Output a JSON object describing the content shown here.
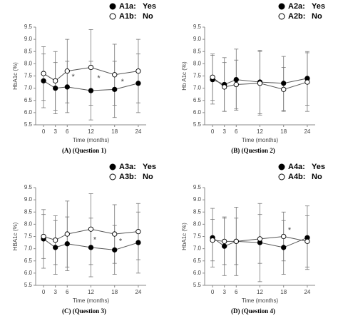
{
  "chart_data": [
    {
      "type": "line",
      "caption": "(A) (Question 1)",
      "xlabel": "Time (months)",
      "ylabel": "HbA1c (%)",
      "x": [
        0,
        3,
        6,
        12,
        18,
        24
      ],
      "xlim": [
        -2,
        26
      ],
      "xticks": [
        0,
        3,
        6,
        12,
        18,
        24
      ],
      "ylim": [
        5.5,
        9.5
      ],
      "yticks": [
        5.5,
        {
          "value": 6,
          "label": "6.0"
        },
        6.5,
        {
          "value": 7,
          "label": "7.0"
        },
        7.5,
        {
          "value": 8,
          "label": "8.0"
        },
        8.5,
        {
          "value": 9,
          "label": "9.0"
        },
        9.5
      ],
      "series": [
        {
          "name": "A1a:",
          "legend_label": "Yes",
          "color": "#000000",
          "values": [
            7.3,
            7.0,
            7.05,
            6.9,
            6.95,
            7.2
          ],
          "errors": [
            1.1,
            1.05,
            1.05,
            1.2,
            1.15,
            1.2
          ]
        },
        {
          "name": "A1b:",
          "legend_label": "No",
          "color": "#ffffff",
          "values": [
            7.6,
            7.3,
            7.7,
            7.85,
            7.55,
            7.7
          ],
          "errors": [
            1.1,
            1.2,
            1.3,
            1.55,
            1.25,
            1.3
          ]
        }
      ],
      "annotations": [
        {
          "text": "*",
          "x": 7.5,
          "y": 7.45
        },
        {
          "text": "*",
          "x": 14,
          "y": 7.4
        },
        {
          "text": "*",
          "x": 20,
          "y": 7.25
        }
      ]
    },
    {
      "type": "line",
      "caption": "(B) (Question 2)",
      "xlabel": "Time (months)",
      "ylabel": "Hb A1c (%)",
      "x": [
        0,
        3,
        6,
        12,
        18,
        24
      ],
      "xlim": [
        -2,
        26
      ],
      "xticks": [
        0,
        3,
        6,
        12,
        18,
        24
      ],
      "ylim": [
        5.5,
        9.5
      ],
      "yticks": [
        5.5,
        {
          "value": 6,
          "label": "6.0"
        },
        6.5,
        {
          "value": 7,
          "label": "7.0"
        },
        7.5,
        {
          "value": 8,
          "label": "8.0"
        },
        8.5,
        {
          "value": 9,
          "label": "9.0"
        },
        9.5
      ],
      "series": [
        {
          "name": "A2a:",
          "legend_label": "Yes",
          "color": "#000000",
          "values": [
            7.35,
            7.15,
            7.35,
            7.25,
            7.2,
            7.4
          ],
          "errors": [
            1.0,
            1.1,
            1.25,
            1.3,
            1.1,
            1.1
          ]
        },
        {
          "name": "A2b:",
          "legend_label": "No",
          "color": "#ffffff",
          "values": [
            7.45,
            7.05,
            7.15,
            7.2,
            6.95,
            7.25
          ],
          "errors": [
            0.95,
            1.0,
            1.0,
            1.3,
            0.9,
            1.2
          ]
        }
      ],
      "annotations": []
    },
    {
      "type": "line",
      "caption": "(C) (Question 3)",
      "xlabel": "Time (months)",
      "ylabel": "HBA1c (%)",
      "x": [
        0,
        3,
        6,
        12,
        18,
        24
      ],
      "xlim": [
        -2,
        26
      ],
      "xticks": [
        0,
        3,
        6,
        12,
        18,
        24
      ],
      "ylim": [
        5.5,
        9.5
      ],
      "yticks": [
        5.5,
        {
          "value": 6,
          "label": "6.0"
        },
        6.5,
        {
          "value": 7,
          "label": "7.0"
        },
        7.5,
        {
          "value": 8,
          "label": "8.0"
        },
        8.5,
        {
          "value": 9,
          "label": "9.0"
        },
        9.5
      ],
      "series": [
        {
          "name": "A3a:",
          "legend_label": "Yes",
          "color": "#000000",
          "values": [
            7.4,
            7.05,
            7.2,
            7.05,
            6.95,
            7.25
          ],
          "errors": [
            1.2,
            1.1,
            1.1,
            1.2,
            1.0,
            1.25
          ]
        },
        {
          "name": "A3b:",
          "legend_label": "No",
          "color": "#ffffff",
          "values": [
            7.5,
            7.35,
            7.6,
            7.8,
            7.6,
            7.7
          ],
          "errors": [
            0.9,
            1.0,
            1.35,
            1.45,
            1.2,
            1.15
          ]
        }
      ],
      "annotations": [
        {
          "text": "*",
          "x": 13,
          "y": 7.35
        },
        {
          "text": "*",
          "x": 19.5,
          "y": 7.3
        }
      ]
    },
    {
      "type": "line",
      "caption": "(D) (Question 4)",
      "xlabel": "Time (months)",
      "ylabel": "HbA1c (%)",
      "x": [
        0,
        3,
        6,
        12,
        18,
        24
      ],
      "xlim": [
        -2,
        26
      ],
      "xticks": [
        0,
        3,
        6,
        12,
        18,
        24
      ],
      "ylim": [
        5.5,
        9.5
      ],
      "yticks": [
        5.5,
        {
          "value": 6,
          "label": "6.0"
        },
        6.5,
        {
          "value": 7,
          "label": "7.0"
        },
        7.5,
        {
          "value": 8,
          "label": "8.0"
        },
        8.5,
        {
          "value": 9,
          "label": "9.0"
        },
        9.5
      ],
      "series": [
        {
          "name": "A4a:",
          "legend_label": "Yes",
          "color": "#000000",
          "values": [
            7.45,
            7.1,
            7.3,
            7.25,
            7.05,
            7.45
          ],
          "errors": [
            1.2,
            1.2,
            1.4,
            1.6,
            1.1,
            1.3
          ]
        },
        {
          "name": "A4b:",
          "legend_label": "No",
          "color": "#ffffff",
          "values": [
            7.35,
            7.3,
            7.3,
            7.4,
            7.5,
            7.3
          ],
          "errors": [
            0.85,
            0.95,
            0.95,
            1.0,
            1.0,
            1.05
          ]
        }
      ],
      "annotations": [
        {
          "text": "*",
          "x": 19.5,
          "y": 7.75
        }
      ]
    }
  ]
}
